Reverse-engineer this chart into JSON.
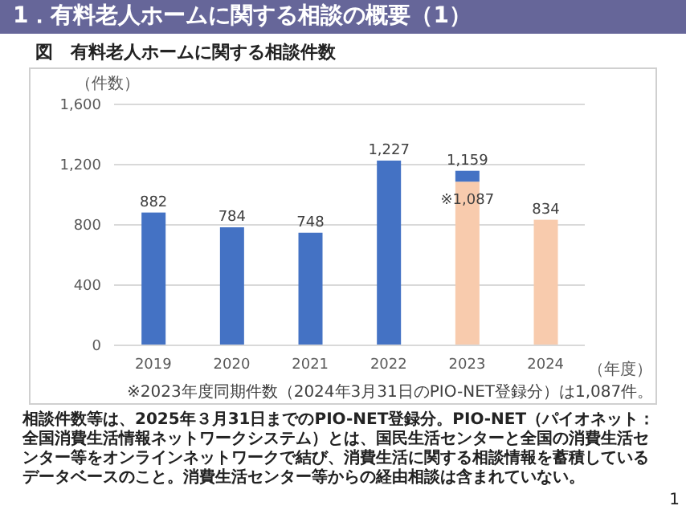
{
  "chart_data": {
    "type": "bar",
    "title": "1．有料老人ホームに関する相談の概要（1）",
    "subtitle": "図　有料老人ホームに関する相談件数",
    "ylabel": "（件数）",
    "xlabel": "（年度）",
    "categories": [
      "2019",
      "2020",
      "2021",
      "2022",
      "2023",
      "2024"
    ],
    "stacked": true,
    "series": [
      {
        "color": "#f8cbad",
        "values": [
          null,
          null,
          null,
          null,
          1087,
          834
        ],
        "value_labels": [
          null,
          null,
          null,
          null,
          "※1,087",
          null
        ]
      },
      {
        "color": "#4472c4",
        "values": [
          882,
          784,
          748,
          1227,
          72,
          null
        ]
      }
    ],
    "totals": [
      "882",
      "784",
      "748",
      "1,227",
      "1,159",
      "834"
    ],
    "ylim": [
      0,
      1600
    ],
    "yticks": [
      0,
      400,
      800,
      {
        "value": 1200,
        "label": "1,200"
      },
      {
        "value": 1600,
        "label": "1,600"
      }
    ],
    "grid": "y",
    "annotations": [
      "※2023年度同期件数（2024年3月31日のPIO-NET登録分）は1,087件。",
      "相談件数等は、2025年３月31日までのPIO-NET登録分。PIO-NET（パイオネット：全国消費生活情報ネットワークシステム）とは、国民生活センターと全国の消費生活センター等をオンラインネットワークで結び、消費生活に関する相談情報を蓄積しているデータベースのこと。消費生活センター等からの経由相談は含まれていない。",
      "1"
    ]
  }
}
